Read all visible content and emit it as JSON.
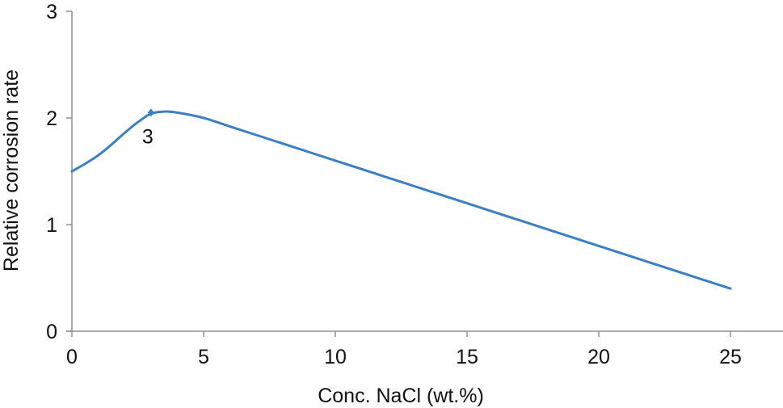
{
  "chart_data": {
    "type": "line",
    "title": "",
    "xlabel": "Conc. NaCl (wt.%)",
    "ylabel": "Relative corrosion rate",
    "xlim": [
      0,
      26.5
    ],
    "ylim": [
      0,
      3
    ],
    "xticks": [
      0,
      5,
      10,
      15,
      20,
      25
    ],
    "yticks": [
      0,
      1,
      2,
      3
    ],
    "grid": false,
    "legend": null,
    "series": [
      {
        "name": "Relative corrosion rate",
        "color": "#3b7fc4",
        "x": [
          0,
          0.5,
          1,
          1.5,
          2,
          2.5,
          3,
          3.5,
          4,
          5,
          6,
          7,
          8,
          9,
          10,
          12,
          14,
          15,
          16,
          18,
          20,
          22,
          24,
          25
        ],
        "y": [
          1.5,
          1.57,
          1.65,
          1.75,
          1.86,
          1.96,
          2.04,
          2.06,
          2.05,
          2.0,
          1.92,
          1.84,
          1.76,
          1.68,
          1.6,
          1.44,
          1.28,
          1.2,
          1.12,
          0.96,
          0.8,
          0.64,
          0.48,
          0.4
        ]
      }
    ],
    "annotations": [
      {
        "text": "3",
        "x": 3,
        "y": 2.05,
        "marker": "diamond"
      }
    ]
  },
  "labels": {
    "xlabel": "Conc. NaCl (wt.%)",
    "ylabel": "Relative corrosion rate",
    "annotation": "3",
    "xticks": [
      "0",
      "5",
      "10",
      "15",
      "20",
      "25"
    ],
    "yticks": [
      "0",
      "1",
      "2",
      "3"
    ]
  },
  "colors": {
    "line": "#3b7fc4",
    "axis": "#8a909c"
  }
}
